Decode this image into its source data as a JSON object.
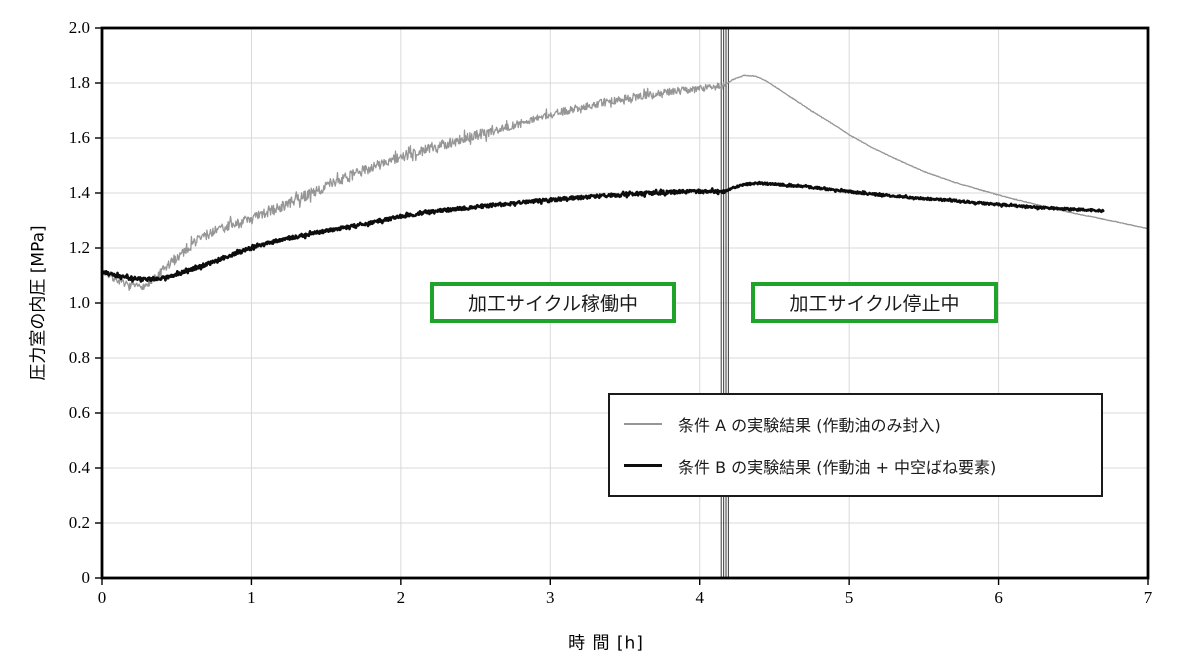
{
  "chart_data": {
    "type": "line",
    "title": "",
    "xlabel": "時 間 [h]",
    "ylabel": "圧力室の内圧 [MPa]",
    "xlim": [
      0,
      7
    ],
    "ylim": [
      0,
      2.0
    ],
    "xticks": [
      "0",
      "1",
      "2",
      "3",
      "4",
      "5",
      "6",
      "7"
    ],
    "yticks": [
      "2.0",
      "1.8",
      "1.6",
      "1.4",
      "1.2",
      "1.0",
      "0.8",
      "0.6",
      "0.4",
      "0.2",
      "0"
    ],
    "grid": true,
    "grid_color": "#d9d9d9",
    "spine_color": "#000000",
    "legend_position": "inside-lower-right",
    "event_marker": {
      "t_center_h": 4.168,
      "line_count": 4,
      "line_spacing_px": 2.4,
      "color": "#4a4a4a",
      "meaning": "transition from machining cycle running to stopped"
    },
    "series": [
      {
        "name": "条件 A の実験結果 (作動油のみ封入)",
        "color": "#969696",
        "width": 1.3,
        "segments": [
          {
            "phase": "加工サイクル稼働中",
            "noise_amp_MPa": 0.016,
            "points": [
              [
                0,
                1.115
              ],
              [
                0.06,
                1.095
              ],
              [
                0.13,
                1.075
              ],
              [
                0.2,
                1.062
              ],
              [
                0.28,
                1.06
              ],
              [
                0.35,
                1.082
              ],
              [
                0.45,
                1.14
              ],
              [
                0.55,
                1.19
              ],
              [
                0.65,
                1.235
              ],
              [
                0.8,
                1.272
              ],
              [
                1,
                1.305
              ],
              [
                1.2,
                1.35
              ],
              [
                1.4,
                1.4
              ],
              [
                1.6,
                1.447
              ],
              [
                1.8,
                1.493
              ],
              [
                2,
                1.53
              ],
              [
                2.25,
                1.572
              ],
              [
                2.5,
                1.608
              ],
              [
                2.75,
                1.645
              ],
              [
                3,
                1.685
              ],
              [
                3.25,
                1.717
              ],
              [
                3.5,
                1.744
              ],
              [
                3.75,
                1.764
              ],
              [
                4,
                1.78
              ],
              [
                4.17,
                1.79
              ]
            ]
          },
          {
            "phase": "加工サイクル停止中",
            "noise_amp_MPa": 0.0012,
            "points": [
              [
                4.17,
                1.793
              ],
              [
                4.22,
                1.812
              ],
              [
                4.3,
                1.828
              ],
              [
                4.38,
                1.824
              ],
              [
                4.45,
                1.806
              ],
              [
                4.6,
                1.752
              ],
              [
                4.75,
                1.698
              ],
              [
                4.9,
                1.648
              ],
              [
                5,
                1.612
              ],
              [
                5.15,
                1.566
              ],
              [
                5.3,
                1.527
              ],
              [
                5.5,
                1.478
              ],
              [
                5.7,
                1.44
              ],
              [
                5.9,
                1.408
              ],
              [
                6.1,
                1.378
              ],
              [
                6.3,
                1.352
              ],
              [
                6.5,
                1.327
              ],
              [
                6.7,
                1.305
              ],
              [
                6.85,
                1.288
              ],
              [
                7,
                1.27
              ]
            ]
          }
        ]
      },
      {
        "name": "条件 B の実験結果 (作動油 + 中空ばね要素)",
        "color": "#0d0d0d",
        "width": 2.6,
        "segments": [
          {
            "phase": "加工サイクル稼働中",
            "noise_amp_MPa": 0.0065,
            "points": [
              [
                0,
                1.112
              ],
              [
                0.1,
                1.098
              ],
              [
                0.2,
                1.09
              ],
              [
                0.3,
                1.086
              ],
              [
                0.4,
                1.09
              ],
              [
                0.55,
                1.112
              ],
              [
                0.7,
                1.14
              ],
              [
                0.85,
                1.172
              ],
              [
                1,
                1.2
              ],
              [
                1.2,
                1.23
              ],
              [
                1.4,
                1.252
              ],
              [
                1.7,
                1.282
              ],
              [
                2,
                1.315
              ],
              [
                2.3,
                1.338
              ],
              [
                2.6,
                1.355
              ],
              [
                2.9,
                1.37
              ],
              [
                3.2,
                1.384
              ],
              [
                3.5,
                1.395
              ],
              [
                3.8,
                1.403
              ],
              [
                4,
                1.406
              ],
              [
                4.17,
                1.406
              ]
            ]
          },
          {
            "phase": "加工サイクル停止中",
            "noise_amp_MPa": 0.0038,
            "points": [
              [
                4.17,
                1.408
              ],
              [
                4.24,
                1.422
              ],
              [
                4.32,
                1.432
              ],
              [
                4.4,
                1.435
              ],
              [
                4.5,
                1.432
              ],
              [
                4.65,
                1.426
              ],
              [
                4.8,
                1.418
              ],
              [
                5,
                1.405
              ],
              [
                5.2,
                1.394
              ],
              [
                5.45,
                1.382
              ],
              [
                5.7,
                1.372
              ],
              [
                6,
                1.358
              ],
              [
                6.25,
                1.348
              ],
              [
                6.45,
                1.342
              ],
              [
                6.6,
                1.338
              ],
              [
                6.7,
                1.335
              ]
            ]
          }
        ]
      }
    ]
  },
  "annotations": [
    {
      "text": "加工サイクル稼働中",
      "border_color": "#1fa32b"
    },
    {
      "text": "加工サイクル停止中",
      "border_color": "#1fa32b"
    }
  ],
  "legend": {
    "items": [
      {
        "label": "条件 A の実験結果 (作動油のみ封入)",
        "line_color": "#969696",
        "line_style": "thin"
      },
      {
        "label": "条件 B の実験結果 (作動油 + 中空ばね要素)",
        "line_color": "#0d0d0d",
        "line_style": "thick"
      }
    ]
  }
}
